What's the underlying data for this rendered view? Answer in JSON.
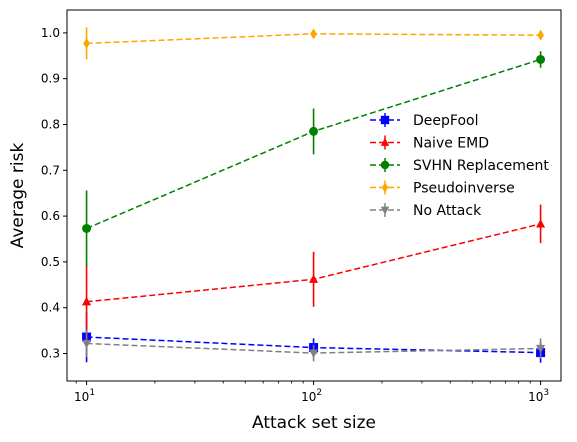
{
  "chart_data": {
    "type": "line",
    "xscale": "log",
    "xlabel": "Attack set size",
    "ylabel": "Average risk",
    "xlim": [
      8.2,
      1230
    ],
    "ylim": [
      0.24,
      1.05
    ],
    "x": [
      10,
      100,
      1000
    ],
    "x_ticks": [
      {
        "value": 10,
        "base": "10",
        "exp": "1"
      },
      {
        "value": 100,
        "base": "10",
        "exp": "2"
      },
      {
        "value": 1000,
        "base": "10",
        "exp": "3"
      }
    ],
    "y_ticks": [
      "0.3",
      "0.4",
      "0.5",
      "0.6",
      "0.7",
      "0.8",
      "0.9",
      "1.0"
    ],
    "legend_position": "center-right",
    "grid": false,
    "series": [
      {
        "name": "DeepFool",
        "color": "#0000ff",
        "marker": "square",
        "values": [
          0.336,
          0.313,
          0.302
        ],
        "errors": [
          0.055,
          0.02,
          0.022
        ]
      },
      {
        "name": "Naive EMD",
        "color": "#ff0000",
        "marker": "triangle-up",
        "values": [
          0.413,
          0.462,
          0.583
        ],
        "errors": [
          0.08,
          0.06,
          0.042
        ]
      },
      {
        "name": "SVHN Replacement",
        "color": "#008000",
        "marker": "circle",
        "values": [
          0.573,
          0.785,
          0.942
        ],
        "errors": [
          0.083,
          0.05,
          0.018
        ]
      },
      {
        "name": "Pseudoinverse",
        "color": "#ffa500",
        "marker": "thin-diamond",
        "values": [
          0.977,
          0.998,
          0.995
        ],
        "errors": [
          0.035,
          0.004,
          0.004
        ]
      },
      {
        "name": "No Attack",
        "color": "#808080",
        "marker": "triangle-down",
        "values": [
          0.322,
          0.301,
          0.311
        ],
        "errors": [
          0.03,
          0.018,
          0.022
        ]
      }
    ]
  }
}
